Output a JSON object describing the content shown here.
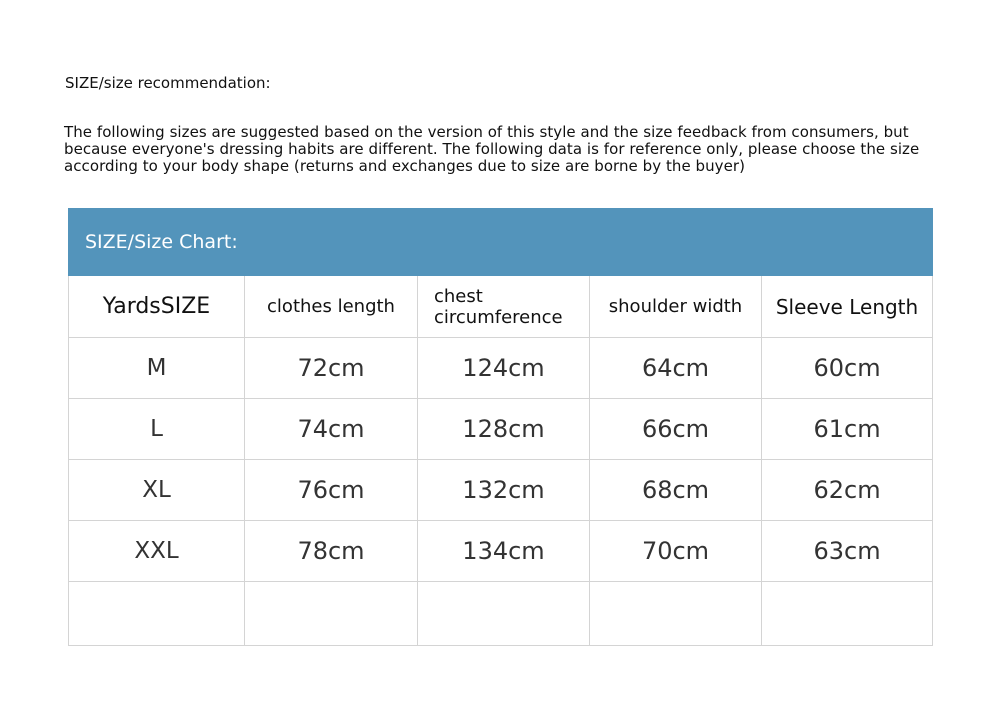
{
  "title": "SIZE/size recommendation:",
  "intro": "The following sizes are suggested based on the version of this style and the size feedback from consumers, but because everyone's dressing habits are different. The following data is for reference only, please choose the size according to your body shape (returns and exchanges due to size are borne by the buyer)",
  "table": {
    "caption": "SIZE/Size Chart:",
    "header_color": "#5394bb",
    "columns": [
      "YardsSIZE",
      "clothes length",
      "chest circumference",
      "shoulder width",
      "Sleeve Length"
    ],
    "rows": [
      [
        "M",
        "72cm",
        "124cm",
        "64cm",
        "60cm"
      ],
      [
        "L",
        "74cm",
        "128cm",
        "66cm",
        "61cm"
      ],
      [
        "XL",
        "76cm",
        "132cm",
        "68cm",
        "62cm"
      ],
      [
        "XXL",
        "78cm",
        "134cm",
        "70cm",
        "63cm"
      ],
      [
        "",
        "",
        "",
        "",
        ""
      ]
    ]
  }
}
